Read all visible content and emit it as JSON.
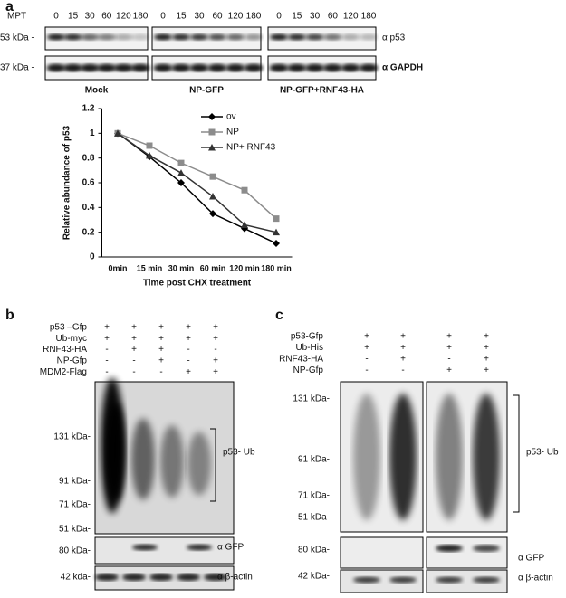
{
  "panel_a": {
    "label": "a",
    "time_header": "MPT",
    "times": [
      "0",
      "15",
      "30",
      "60",
      "120",
      "180"
    ],
    "groups": [
      "Mock",
      "NP-GFP",
      "NP-GFP+RNF43-HA"
    ],
    "markers": [
      "53 kDa -",
      "37 kDa -"
    ],
    "antibodies": [
      "α p53",
      "α GAPDH"
    ]
  },
  "chart_data": {
    "type": "line",
    "x_label": "Time post CHX treatment",
    "y_label": "Relative abundance of p53",
    "categories": [
      "0min",
      "15 min",
      "30 min",
      "60 min",
      "120 min",
      "180 min"
    ],
    "ylim": [
      0,
      1.2
    ],
    "yticks": [
      0,
      0.2,
      0.4,
      0.6,
      0.8,
      1,
      1.2
    ],
    "legend": "upper right",
    "series": [
      {
        "name": "ov",
        "color": "#000000",
        "marker": "diamond",
        "values": [
          1,
          0.81,
          0.6,
          0.35,
          0.23,
          0.11
        ]
      },
      {
        "name": "NP",
        "color": "#8c8c8c",
        "marker": "square",
        "values": [
          1,
          0.9,
          0.76,
          0.65,
          0.54,
          0.31
        ]
      },
      {
        "name": "NP+ RNF43",
        "color": "#333333",
        "marker": "triangle",
        "values": [
          1,
          0.82,
          0.68,
          0.49,
          0.26,
          0.2
        ]
      }
    ]
  },
  "panel_b": {
    "label": "b",
    "conditions": [
      {
        "name": "p53 –Gfp",
        "signs": [
          "+",
          "+",
          "+",
          "+",
          "+"
        ]
      },
      {
        "name": "Ub-myc",
        "signs": [
          "+",
          "+",
          "+",
          "+",
          "+"
        ]
      },
      {
        "name": "RNF43-HA",
        "signs": [
          "-",
          "+",
          "+",
          "-",
          "-"
        ]
      },
      {
        "name": "NP-Gfp",
        "signs": [
          "-",
          "-",
          "+",
          "-",
          "+"
        ]
      },
      {
        "name": "MDM2-Flag",
        "signs": [
          "-",
          "-",
          "-",
          "+",
          "+"
        ]
      }
    ],
    "markers": [
      "131 kDa-",
      "91 kDa-",
      "71 kDa-",
      "51 kDa-",
      "80 kDa-",
      "42 kda-"
    ],
    "bracket_label": "p53- Ub",
    "antibodies": [
      "α GFP",
      "α β-actin"
    ]
  },
  "panel_c": {
    "label": "c",
    "conditions": [
      {
        "name": "p53-Gfp",
        "signs": [
          "+",
          "+",
          "+",
          "+"
        ]
      },
      {
        "name": "Ub-His",
        "signs": [
          "+",
          "+",
          "+",
          "+"
        ]
      },
      {
        "name": "RNF43-HA",
        "signs": [
          "-",
          "+",
          "-",
          "+"
        ]
      },
      {
        "name": "NP-Gfp",
        "signs": [
          "-",
          "-",
          "+",
          "+"
        ]
      }
    ],
    "markers": [
      "131 kDa-",
      "91 kDa-",
      "71 kDa-",
      "51 kDa-",
      "80 kDa-",
      "42 kDa-"
    ],
    "bracket_label": "p53- Ub",
    "antibodies": [
      "α GFP",
      "α β-actin"
    ]
  }
}
